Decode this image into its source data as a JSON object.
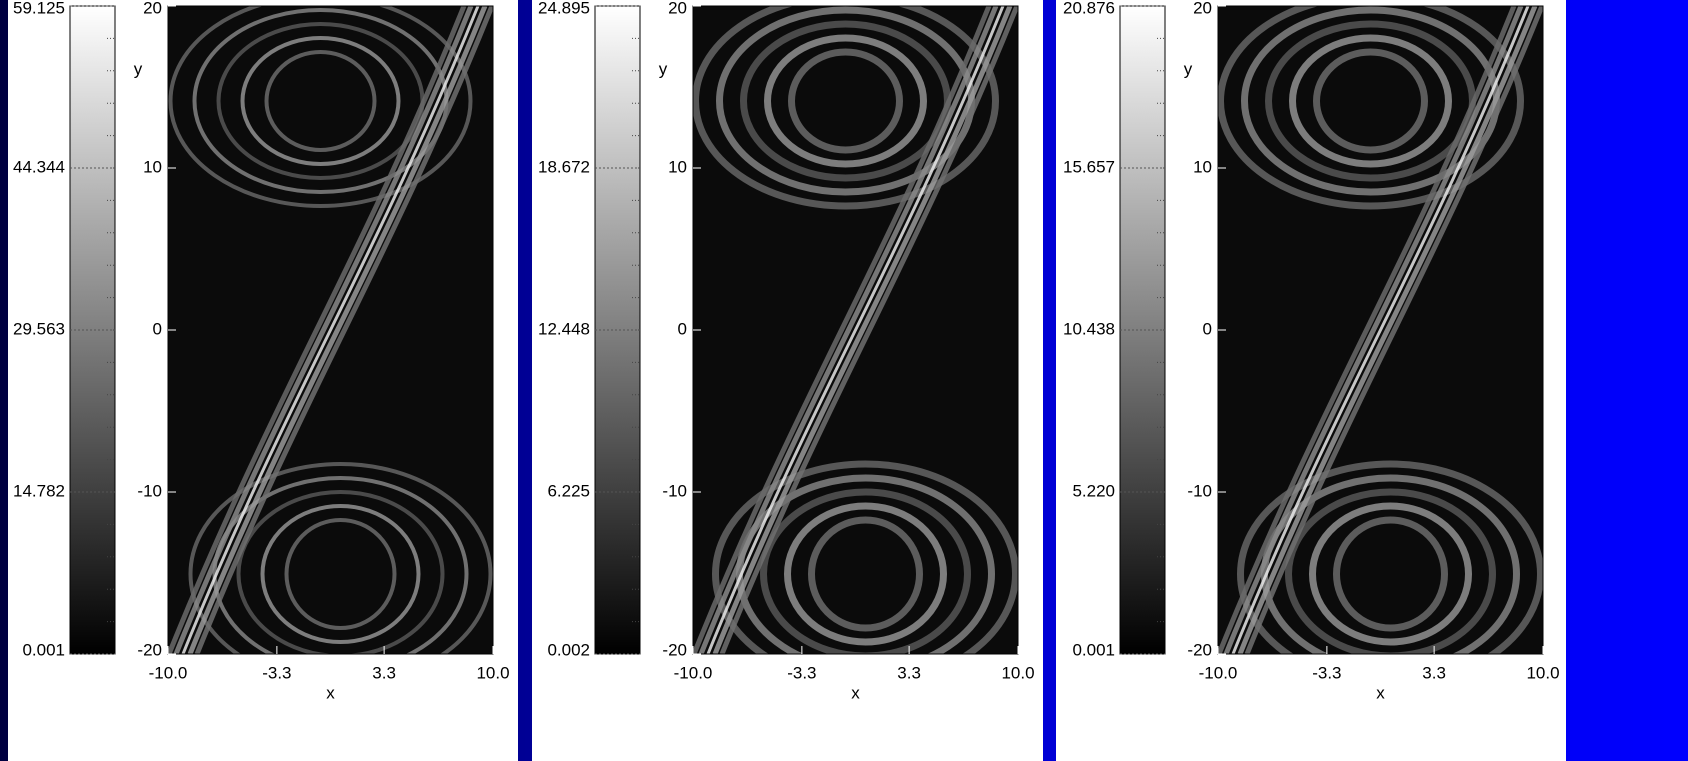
{
  "chart_data": [
    {
      "type": "heatmap",
      "xlabel": "x",
      "ylabel": "y",
      "xlim": [
        -10,
        10
      ],
      "xticks": [
        {
          "value": -10,
          "label": "-10.0"
        },
        -3.3,
        3.3,
        {
          "value": 10,
          "label": "10.0"
        }
      ],
      "ylim": [
        -20,
        20
      ],
      "yticks": [
        -20,
        -10,
        0,
        10,
        20
      ],
      "clim": [
        0.001,
        59.125
      ],
      "cticks": [
        0.001,
        14.782,
        29.563,
        44.344,
        59.125
      ]
    },
    {
      "type": "heatmap",
      "xlabel": "x",
      "ylabel": "y",
      "xlim": [
        -10,
        10
      ],
      "xticks": [
        {
          "value": -10,
          "label": "-10.0"
        },
        -3.3,
        3.3,
        {
          "value": 10,
          "label": "10.0"
        }
      ],
      "ylim": [
        -20,
        20
      ],
      "yticks": [
        -20,
        -10,
        0,
        10,
        20
      ],
      "clim": [
        0.002,
        24.895
      ],
      "cticks": [
        0.002,
        6.225,
        12.448,
        18.672,
        24.895
      ]
    },
    {
      "type": "heatmap",
      "xlabel": "x",
      "ylabel": "y",
      "xlim": [
        -10,
        10
      ],
      "xticks": [
        {
          "value": -10,
          "label": "-10.0"
        },
        -3.3,
        3.3,
        {
          "value": 10,
          "label": "10.0"
        }
      ],
      "ylim": [
        -20,
        20
      ],
      "yticks": [
        -20,
        -10,
        0,
        10,
        20
      ],
      "clim": [
        0.001,
        20.876
      ],
      "cticks": [
        0.001,
        {
          "value": 5.22,
          "label": "5.220"
        },
        10.438,
        15.657,
        20.876
      ]
    }
  ]
}
